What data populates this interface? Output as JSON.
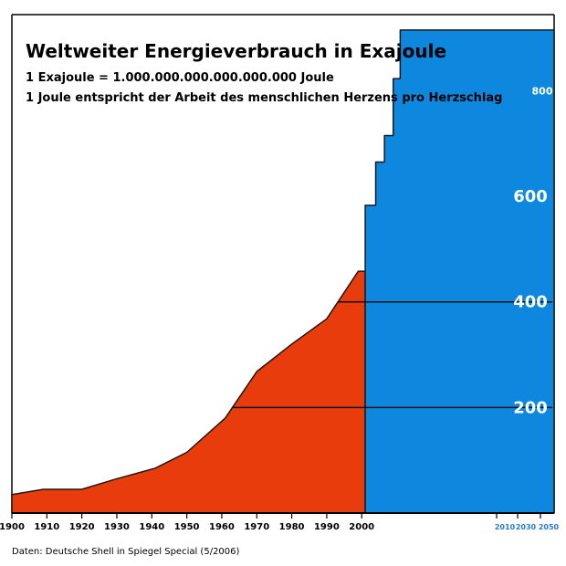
{
  "chart_data": {
    "type": "area",
    "title": "Weltweiter Energieverbrauch in Exajoule",
    "subtitle_lines": [
      "1 Exajoule = 1.000.000.000.000.000.000 Joule",
      "1 Joule entspricht der Arbeit des menschlichen Herzens pro Herzschlag"
    ],
    "source": "Daten: Deutsche Shell in Spiegel Special (5/2006)",
    "xlim": [
      1900,
      2055
    ],
    "ylim": [
      0,
      920
    ],
    "x_ticks": [
      "1900",
      "1910",
      "1920",
      "1930",
      "1940",
      "1950",
      "1960",
      "1970",
      "1980",
      "1990",
      "2000"
    ],
    "x_ticks_forecast": [
      "2010",
      "2030",
      "2050"
    ],
    "y_labels": [
      {
        "value": 200,
        "text": "200"
      },
      {
        "value": 400,
        "text": "400"
      },
      {
        "value": 600,
        "text": "600"
      },
      {
        "value": 800,
        "text": "800"
      }
    ],
    "gridlines": [
      200,
      400
    ],
    "series": [
      {
        "kind": "historical",
        "color": "#e83c0c",
        "x": [
          1900,
          1909,
          1920,
          1930,
          1941,
          1950,
          1961,
          1970,
          1980,
          1990,
          1999,
          2001
        ],
        "y": [
          35,
          45,
          45,
          65,
          85,
          115,
          180,
          268,
          320,
          368,
          458,
          458
        ]
      },
      {
        "kind": "forecast",
        "color": "#0e88df",
        "x": [
          2001,
          2004,
          2004,
          2006.5,
          2006.5,
          2009,
          2009,
          2011,
          2011,
          2013,
          2013,
          2055
        ],
        "y": [
          583,
          583,
          665,
          665,
          715,
          715,
          823,
          823,
          915,
          915,
          915,
          915
        ]
      }
    ]
  }
}
